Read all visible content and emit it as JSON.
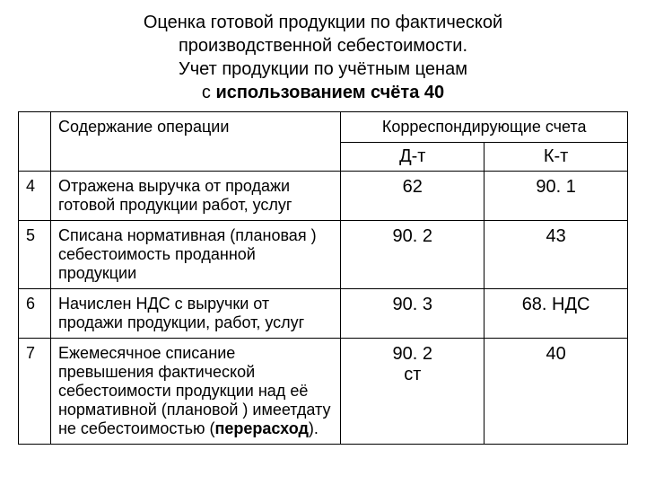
{
  "title": {
    "line1": "Оценка готовой продукции по фактической",
    "line2": "производственной себестоимости.",
    "line3": "Учет продукции по учётным ценам",
    "line4_prefix": "с ",
    "line4_bold": "использованием счёта 40"
  },
  "table": {
    "header": {
      "operation": "Содержание операции",
      "corresponding": "Корреспондирующие счета",
      "debit": "Д-т",
      "credit": "К-т"
    },
    "rows": [
      {
        "num": "4",
        "desc": "Отражена  выручка от продажи готовой продукции работ, услуг",
        "debit": "62",
        "credit": "90. 1"
      },
      {
        "num": "5",
        "desc": "Списана нормативная (плановая ) себестоимость проданной продукции",
        "debit": "90. 2",
        "credit": "43"
      },
      {
        "num": "6",
        "desc": "Начислен НДС с выручки от продажи продукции, работ, услуг",
        "debit": "90. 3",
        "credit": "68. НДС"
      },
      {
        "num": "7",
        "desc_prefix": "Ежемесячное списание превышения фактической себестоимости продукции над её нормативной (плановой ) имеетдату не себестоимостью (",
        "desc_bold": "перерасход",
        "desc_suffix": ").",
        "debit": "90. 2\nст",
        "credit": "40"
      }
    ],
    "styling": {
      "border_color": "#000000",
      "border_width": 1.5,
      "background_color": "#ffffff",
      "title_fontsize": 20,
      "cell_fontsize": 18,
      "acct_fontsize": 20,
      "font_family": "Arial"
    }
  }
}
